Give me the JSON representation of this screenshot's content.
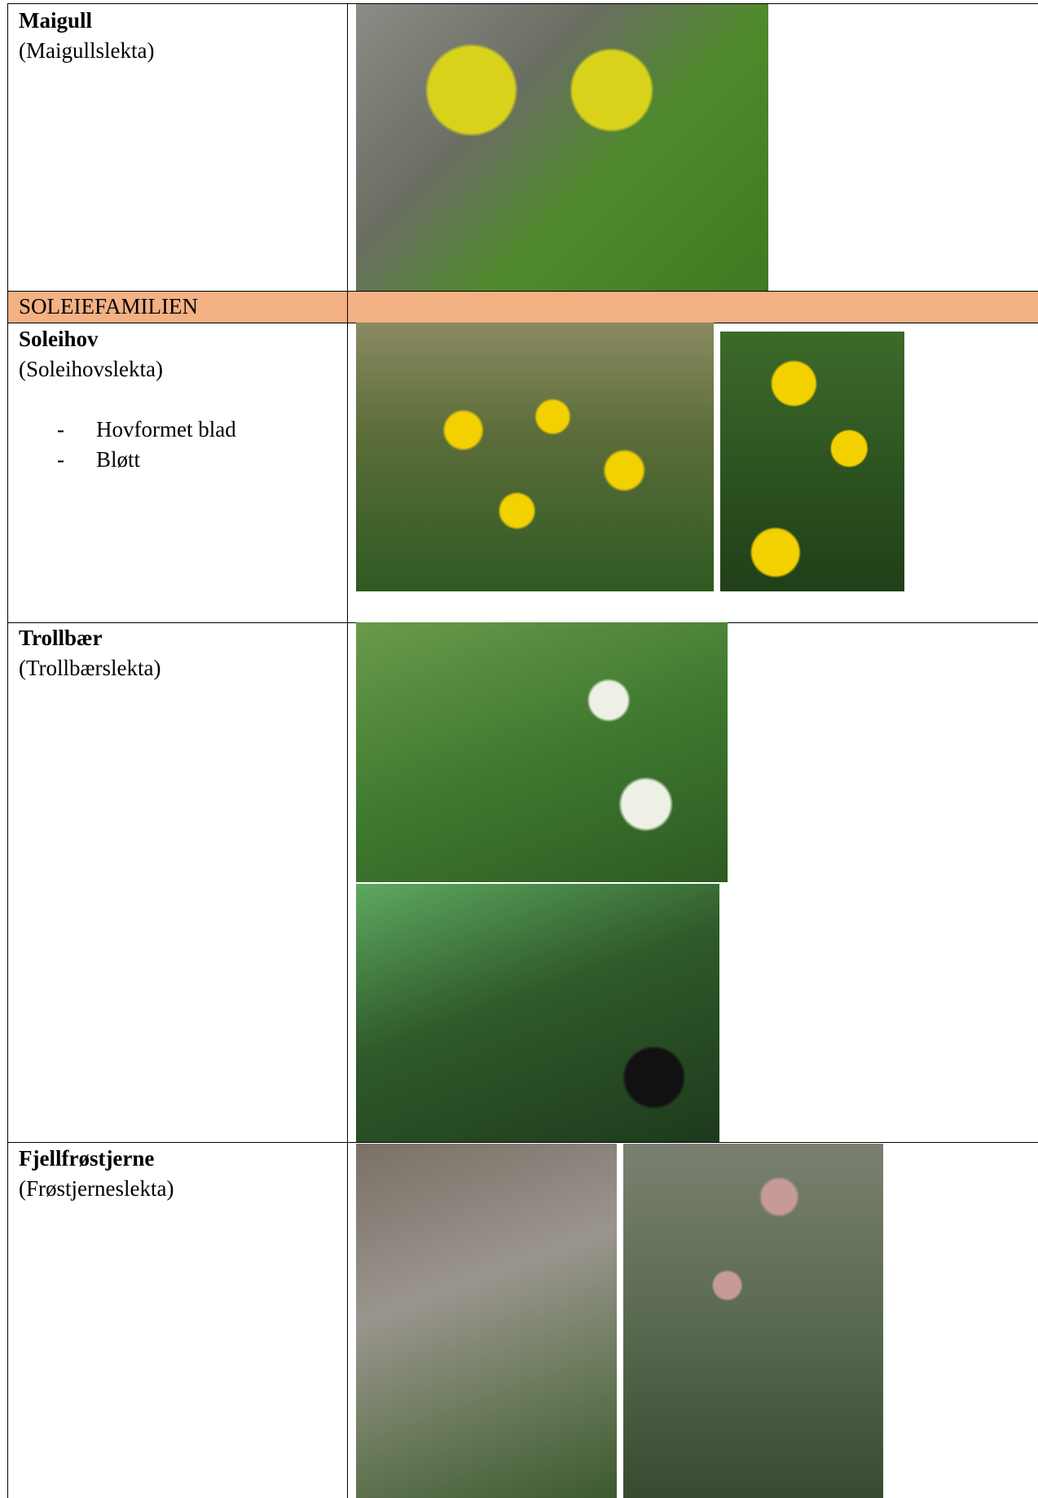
{
  "table": {
    "rows": [
      {
        "name": "Maigull",
        "genus": "(Maigullslekta)"
      },
      {
        "family": "SOLEIEFAMILIEN"
      },
      {
        "name": "Soleihov",
        "genus": "(Soleihovslekta)",
        "marker": "-",
        "notes": [
          "Hovformet blad",
          "Bløtt"
        ]
      },
      {
        "name": "Trollbær",
        "genus": "(Trollbærslekta)"
      },
      {
        "name": "Fjellfrøstjerne",
        "genus": "(Frøstjerneslekta)"
      }
    ]
  }
}
